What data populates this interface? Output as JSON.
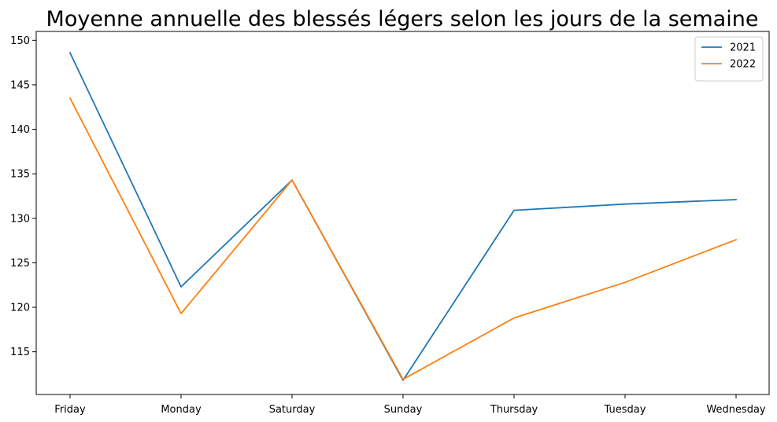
{
  "chart_data": {
    "type": "line",
    "title": "Moyenne annuelle des blessés légers selon les jours de la semaine",
    "xlabel": "",
    "ylabel": "",
    "categories": [
      "Friday",
      "Monday",
      "Saturday",
      "Sunday",
      "Thursday",
      "Tuesday",
      "Wednesday"
    ],
    "series": [
      {
        "name": "2021",
        "color": "#1f77b4",
        "values": [
          148.6,
          122.3,
          134.3,
          111.8,
          130.9,
          131.6,
          132.1
        ]
      },
      {
        "name": "2022",
        "color": "#ff7f0e",
        "values": [
          143.5,
          119.3,
          134.3,
          111.9,
          118.8,
          122.8,
          127.6
        ]
      }
    ],
    "ylim": [
      110.2,
      151.0
    ],
    "yticks": [
      115,
      120,
      125,
      130,
      135,
      140,
      145,
      150
    ],
    "grid": false,
    "legend_position": "top-right"
  }
}
